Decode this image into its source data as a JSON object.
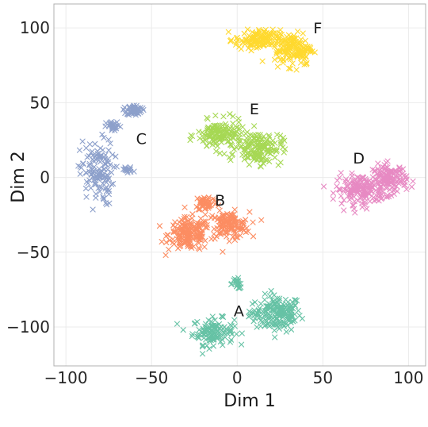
{
  "chart_data": {
    "type": "scatter",
    "title": "",
    "xlabel": "Dim 1",
    "ylabel": "Dim 2",
    "xlim": [
      -107,
      110
    ],
    "ylim": [
      -126,
      116
    ],
    "xticks": [
      -100,
      -50,
      0,
      50,
      100
    ],
    "xtick_labels": [
      "−100",
      "−50",
      "0",
      "50",
      "100"
    ],
    "yticks": [
      -100,
      -50,
      0,
      50,
      100
    ],
    "ytick_labels": [
      "−100",
      "−50",
      "0",
      "50",
      "100"
    ],
    "grid": true,
    "legend": "none",
    "marker": "x",
    "clusters": [
      {
        "label": "A",
        "color": "#66c2a5",
        "label_pos": [
          1,
          -89
        ],
        "blobs": [
          {
            "center": [
              24,
              -91
            ],
            "spread": [
              12,
              11
            ],
            "count": 170
          },
          {
            "center": [
              -14,
              -103
            ],
            "spread": [
              11,
              8
            ],
            "count": 120
          },
          {
            "center": [
              0,
              -71
            ],
            "spread": [
              4,
              3
            ],
            "count": 20
          },
          {
            "center": [
              9,
              -91
            ],
            "spread": [
              3,
              2
            ],
            "count": 10
          }
        ]
      },
      {
        "label": "B",
        "color": "#fc8d62",
        "label_pos": [
          -10,
          -15
        ],
        "blobs": [
          {
            "center": [
              -28,
              -38
            ],
            "spread": [
              11,
              10
            ],
            "count": 170
          },
          {
            "center": [
              -5,
              -32
            ],
            "spread": [
              11,
              8
            ],
            "count": 130
          },
          {
            "center": [
              -18,
              -17
            ],
            "spread": [
              6,
              5
            ],
            "count": 50
          }
        ]
      },
      {
        "label": "C",
        "color": "#8da0cb",
        "label_pos": [
          -56,
          26
        ],
        "blobs": [
          {
            "center": [
              -60,
              45
            ],
            "spread": [
              4,
              3
            ],
            "count": 60
          },
          {
            "center": [
              -82,
              3
            ],
            "spread": [
              9,
              20
            ],
            "count": 130
          },
          {
            "center": [
              -72,
              34
            ],
            "spread": [
              4,
              3
            ],
            "count": 25
          },
          {
            "center": [
              -64,
              5
            ],
            "spread": [
              3,
              2
            ],
            "count": 15
          }
        ]
      },
      {
        "label": "D",
        "color": "#e78ac3",
        "label_pos": [
          71,
          13
        ],
        "blobs": [
          {
            "center": [
              72,
              -8
            ],
            "spread": [
              13,
              9
            ],
            "count": 160
          },
          {
            "center": [
              89,
              -1
            ],
            "spread": [
              9,
              9
            ],
            "count": 130
          }
        ]
      },
      {
        "label": "E",
        "color": "#a6d854",
        "label_pos": [
          10,
          46
        ],
        "blobs": [
          {
            "center": [
              -10,
              28
            ],
            "spread": [
              12,
              9
            ],
            "count": 150
          },
          {
            "center": [
              13,
              20
            ],
            "spread": [
              12,
              10
            ],
            "count": 150
          }
        ]
      },
      {
        "label": "F",
        "color": "#ffd92f",
        "label_pos": [
          47,
          100
        ],
        "blobs": [
          {
            "center": [
              12,
              92
            ],
            "spread": [
              12,
              6
            ],
            "count": 130
          },
          {
            "center": [
              33,
              86
            ],
            "spread": [
              10,
              10
            ],
            "count": 150
          }
        ]
      }
    ]
  }
}
